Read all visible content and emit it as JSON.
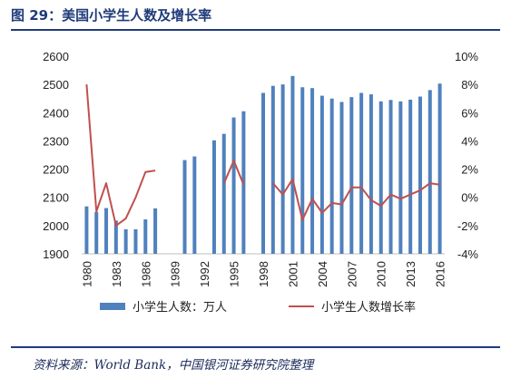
{
  "header": {
    "title": "图 29：美国小学生人数及增长率"
  },
  "footer": {
    "source": "资料来源：World Bank，中国银河证券研究院整理"
  },
  "colors": {
    "title": "#1f3b7a",
    "bar": "#4f81bd",
    "line": "#c0504d",
    "rule": "#1f3b7a"
  },
  "chart_data": {
    "type": "bar",
    "title": "",
    "xlabel": "",
    "ylabel": "",
    "ylim": [
      1900,
      2600
    ],
    "y2lim": [
      -4,
      10
    ],
    "yticks": [
      "1900",
      "2000",
      "2100",
      "2200",
      "2300",
      "2400",
      "2500",
      "2600"
    ],
    "y2ticks": [
      "-4%",
      "-2%",
      "0%",
      "2%",
      "4%",
      "6%",
      "8%",
      "10%"
    ],
    "xtick_labels": [
      "1980",
      "1983",
      "1986",
      "1989",
      "1992",
      "1995",
      "1998",
      "2001",
      "2004",
      "2007",
      "2010",
      "2013",
      "2016"
    ],
    "categories": [
      "1980",
      "1981",
      "1982",
      "1983",
      "1984",
      "1985",
      "1986",
      "1987",
      "1988",
      "1989",
      "1990",
      "1991",
      "1992",
      "1993",
      "1994",
      "1995",
      "1996",
      "1997",
      "1998",
      "1999",
      "2000",
      "2001",
      "2002",
      "2003",
      "2004",
      "2005",
      "2006",
      "2007",
      "2008",
      "2009",
      "2010",
      "2011",
      "2012",
      "2013",
      "2014",
      "2015",
      "2016"
    ],
    "legend_position": "bottom",
    "series": [
      {
        "name": "小学生人数：万人",
        "type": "bar",
        "axis": "left",
        "values": [
          2068,
          2048,
          2062,
          2018,
          1987,
          1987,
          2022,
          2061,
          null,
          null,
          2232,
          2245,
          null,
          2302,
          2325,
          2383,
          2405,
          null,
          2470,
          2495,
          2500,
          2530,
          2490,
          2487,
          2460,
          2450,
          2438,
          2455,
          2470,
          2465,
          2440,
          2445,
          2440,
          2446,
          2457,
          2480,
          2503
        ]
      },
      {
        "name": "小学生人数增长率",
        "type": "line",
        "axis": "right",
        "values": [
          8.0,
          -1.0,
          1.0,
          -2.0,
          -1.5,
          0.0,
          1.8,
          1.9,
          null,
          null,
          null,
          null,
          null,
          null,
          1.0,
          2.6,
          0.9,
          null,
          null,
          1.0,
          0.2,
          1.3,
          -1.6,
          -0.1,
          -1.1,
          -0.4,
          -0.5,
          0.7,
          0.7,
          -0.2,
          -0.6,
          0.2,
          -0.1,
          0.2,
          0.5,
          1.0,
          0.9
        ]
      }
    ]
  }
}
